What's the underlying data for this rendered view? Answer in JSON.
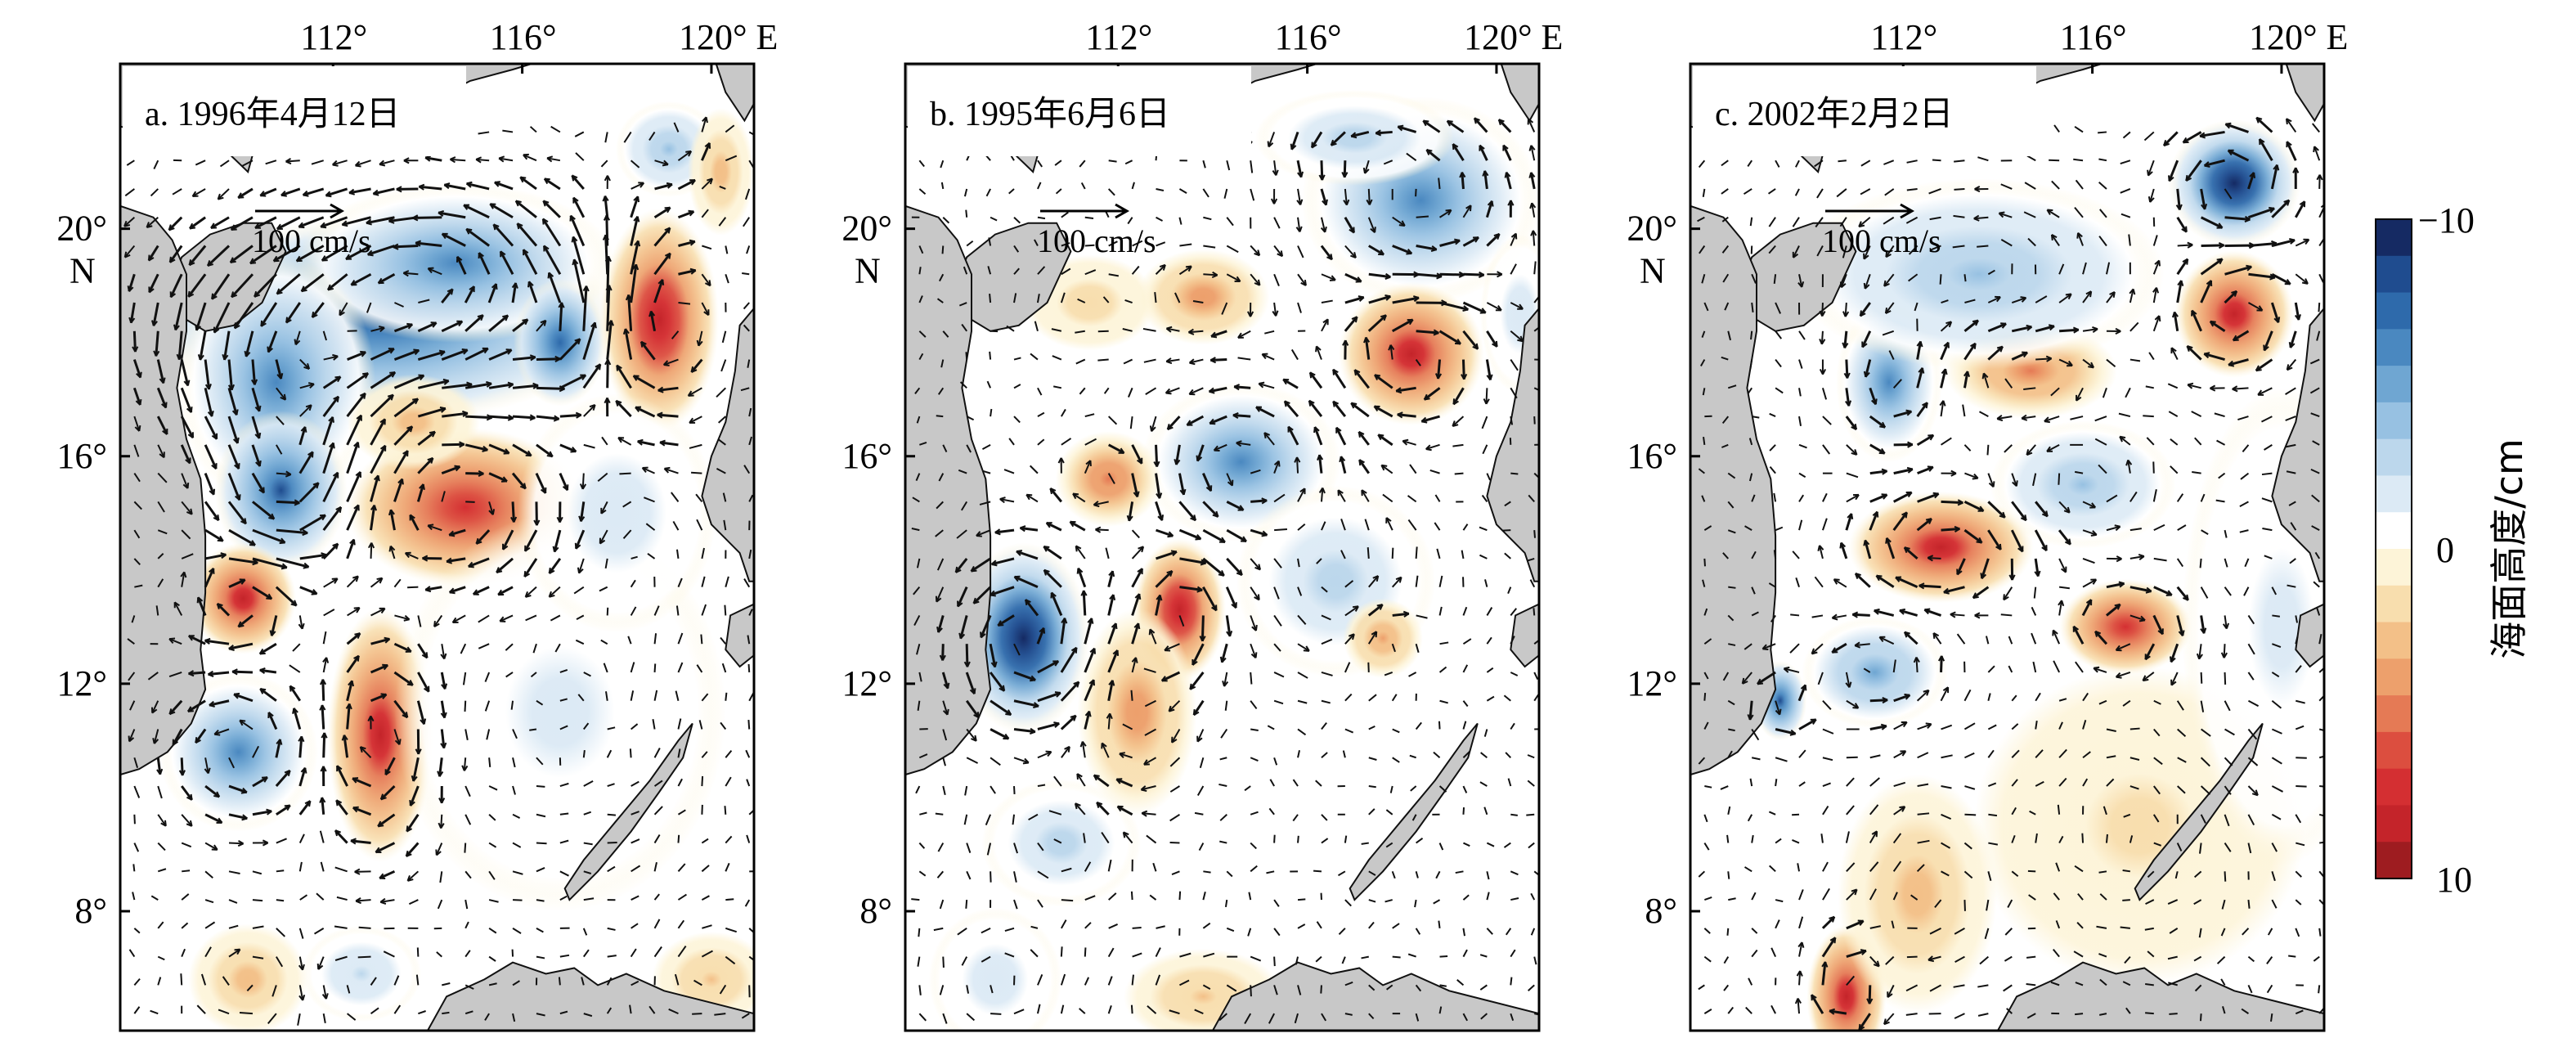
{
  "panels": [
    {
      "label": "a. 1996年4月12日",
      "scale_label": "100 cm/s",
      "eddies": [
        {
          "lon": 113.0,
          "lat": 18.4,
          "value": -7.5,
          "sx": 3.6,
          "sy": 1.3
        },
        {
          "lon": 114.6,
          "lat": 19.4,
          "value": -6.5,
          "sx": 2.4,
          "sy": 1.0
        },
        {
          "lon": 110.8,
          "lat": 17.3,
          "value": -6,
          "sx": 1.5,
          "sy": 1.6
        },
        {
          "lon": 110.9,
          "lat": 15.4,
          "value": -8,
          "sx": 1.0,
          "sy": 1.0
        },
        {
          "lon": 116.8,
          "lat": 18.0,
          "value": -7.5,
          "sx": 0.7,
          "sy": 0.8
        },
        {
          "lon": 119.1,
          "lat": 21.4,
          "value": -4,
          "sx": 0.8,
          "sy": 0.6
        },
        {
          "lon": 118.9,
          "lat": 18.4,
          "value": 8.5,
          "sx": 0.9,
          "sy": 1.4
        },
        {
          "lon": 120.2,
          "lat": 21.0,
          "value": 3,
          "sx": 0.5,
          "sy": 0.8
        },
        {
          "lon": 114.8,
          "lat": 15.1,
          "value": 7,
          "sx": 1.8,
          "sy": 1.0
        },
        {
          "lon": 113.7,
          "lat": 16.6,
          "value": 3,
          "sx": 1.0,
          "sy": 0.6
        },
        {
          "lon": 110.1,
          "lat": 13.5,
          "value": 8,
          "sx": 0.8,
          "sy": 0.7
        },
        {
          "lon": 113.0,
          "lat": 11.1,
          "value": 8,
          "sx": 0.8,
          "sy": 1.6
        },
        {
          "lon": 110.0,
          "lat": 10.8,
          "value": -6.5,
          "sx": 1.2,
          "sy": 1.0
        },
        {
          "lon": 110.2,
          "lat": 6.8,
          "value": 3,
          "sx": 0.9,
          "sy": 0.7
        },
        {
          "lon": 112.6,
          "lat": 6.9,
          "value": -2.5,
          "sx": 0.9,
          "sy": 0.6
        },
        {
          "lon": 120.0,
          "lat": 6.8,
          "value": 2.5,
          "sx": 0.9,
          "sy": 0.6
        },
        {
          "lon": 116.8,
          "lat": 11.5,
          "value": -1.5,
          "sx": 2.5,
          "sy": 2.5
        },
        {
          "lon": 118.0,
          "lat": 15.0,
          "value": -2,
          "sx": 1.5,
          "sy": 1.5
        }
      ]
    },
    {
      "label": "b. 1995年6月6日",
      "scale_label": "100 cm/s",
      "eddies": [
        {
          "lon": 118.4,
          "lat": 20.5,
          "value": -6,
          "sx": 1.8,
          "sy": 1.3
        },
        {
          "lon": 117.0,
          "lat": 21.6,
          "value": -3,
          "sx": 1.5,
          "sy": 0.6
        },
        {
          "lon": 118.2,
          "lat": 17.8,
          "value": 8,
          "sx": 1.1,
          "sy": 0.9
        },
        {
          "lon": 113.8,
          "lat": 18.8,
          "value": 4,
          "sx": 1.0,
          "sy": 0.6
        },
        {
          "lon": 111.4,
          "lat": 18.7,
          "value": 2,
          "sx": 1.0,
          "sy": 0.6
        },
        {
          "lon": 114.6,
          "lat": 15.9,
          "value": -6.5,
          "sx": 1.5,
          "sy": 1.0
        },
        {
          "lon": 111.8,
          "lat": 15.6,
          "value": 5,
          "sx": 0.8,
          "sy": 0.6
        },
        {
          "lon": 110.0,
          "lat": 12.8,
          "value": -10,
          "sx": 1.0,
          "sy": 1.2
        },
        {
          "lon": 113.3,
          "lat": 13.3,
          "value": 8.5,
          "sx": 0.7,
          "sy": 0.9
        },
        {
          "lon": 112.4,
          "lat": 11.5,
          "value": 4,
          "sx": 0.9,
          "sy": 1.3
        },
        {
          "lon": 116.6,
          "lat": 13.8,
          "value": -3,
          "sx": 1.5,
          "sy": 1.2
        },
        {
          "lon": 117.6,
          "lat": 12.8,
          "value": 3.5,
          "sx": 0.6,
          "sy": 0.5
        },
        {
          "lon": 110.8,
          "lat": 9.2,
          "value": -3,
          "sx": 1.2,
          "sy": 0.8
        },
        {
          "lon": 113.8,
          "lat": 6.5,
          "value": 2.5,
          "sx": 1.2,
          "sy": 0.6
        },
        {
          "lon": 109.4,
          "lat": 6.8,
          "value": -2,
          "sx": 1.0,
          "sy": 0.9
        },
        {
          "lon": 120.5,
          "lat": 18.5,
          "value": -2,
          "sx": 0.6,
          "sy": 1.0
        }
      ]
    },
    {
      "label": "c. 2002年2月2日",
      "scale_label": "100 cm/s",
      "eddies": [
        {
          "lon": 119.0,
          "lat": 20.8,
          "value": -10,
          "sx": 1.0,
          "sy": 0.8
        },
        {
          "lon": 119.0,
          "lat": 18.5,
          "value": 8,
          "sx": 0.9,
          "sy": 0.8
        },
        {
          "lon": 114.7,
          "lat": 17.5,
          "value": 4.5,
          "sx": 1.3,
          "sy": 0.6
        },
        {
          "lon": 111.7,
          "lat": 17.3,
          "value": -6,
          "sx": 0.8,
          "sy": 1.0
        },
        {
          "lon": 113.6,
          "lat": 19.2,
          "value": -3.5,
          "sx": 2.8,
          "sy": 1.2
        },
        {
          "lon": 112.8,
          "lat": 14.4,
          "value": 8,
          "sx": 1.4,
          "sy": 0.7
        },
        {
          "lon": 116.7,
          "lat": 13.0,
          "value": 7,
          "sx": 1.0,
          "sy": 0.6
        },
        {
          "lon": 115.8,
          "lat": 15.5,
          "value": -3.5,
          "sx": 1.4,
          "sy": 0.8
        },
        {
          "lon": 111.4,
          "lat": 12.2,
          "value": -5,
          "sx": 1.1,
          "sy": 0.7
        },
        {
          "lon": 109.4,
          "lat": 11.7,
          "value": -8,
          "sx": 0.4,
          "sy": 0.5
        },
        {
          "lon": 110.8,
          "lat": 6.5,
          "value": 8,
          "sx": 0.6,
          "sy": 0.9
        },
        {
          "lon": 112.3,
          "lat": 8.3,
          "value": 3,
          "sx": 1.2,
          "sy": 1.5
        },
        {
          "lon": 117.0,
          "lat": 9.5,
          "value": 1.5,
          "sx": 2.5,
          "sy": 2.0
        },
        {
          "lon": 120.0,
          "lat": 13.0,
          "value": -1.5,
          "sx": 1.5,
          "sy": 3.0
        }
      ]
    }
  ],
  "axes": {
    "lon_ticks": [
      {
        "value": 112,
        "label": "112°"
      },
      {
        "value": 116,
        "label": "116°"
      },
      {
        "value": 120,
        "label": "120° E"
      }
    ],
    "lat_ticks": [
      {
        "value": 20,
        "label": "20°"
      },
      {
        "value": 16,
        "label": "16°"
      },
      {
        "value": 12,
        "label": "12°"
      },
      {
        "value": 8,
        "label": "8°"
      }
    ],
    "lat_hemisphere": "N",
    "lon_range": [
      107.5,
      120.9
    ],
    "lat_range": [
      5.9,
      22.9
    ]
  },
  "colorbar": {
    "title": "海面高度/cm",
    "top_label": "−10",
    "mid_label": "0",
    "bottom_label": "10",
    "range": [
      -10,
      10
    ],
    "colors": [
      "#152a63",
      "#1f4c8f",
      "#2e6aab",
      "#4a88c0",
      "#6fa6d2",
      "#97c1e2",
      "#bcd7ec",
      "#dceaf5",
      "#ffffff",
      "#fdf4d8",
      "#f8deae",
      "#f3c088",
      "#eda06c",
      "#e57a55",
      "#dc4e3f",
      "#d42f32",
      "#c4242a",
      "#9e1c20"
    ]
  },
  "colors": {
    "land": "#c8c8c8",
    "land_stroke": "#111111",
    "arrow": "#111111",
    "frame": "#000000"
  }
}
